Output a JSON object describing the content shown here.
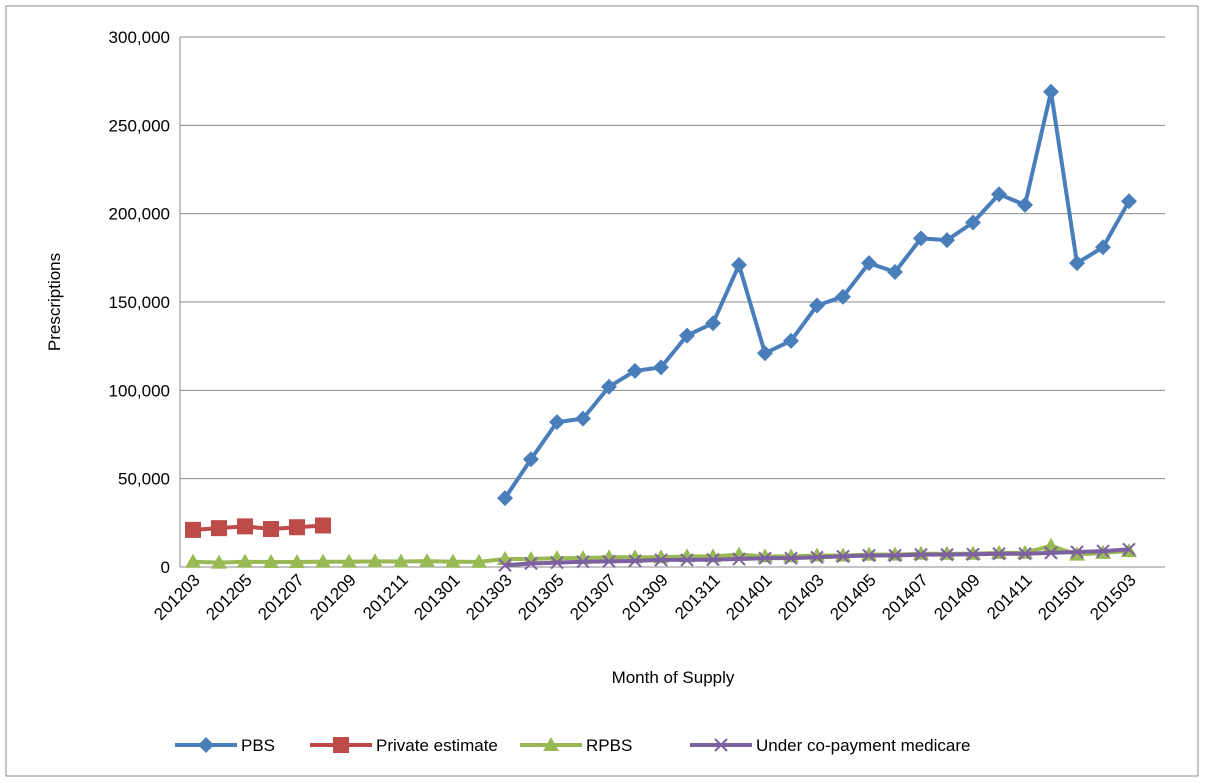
{
  "chart_data": {
    "type": "line",
    "y_label": "Prescriptions",
    "x_label": "Month of Supply",
    "categories": [
      "201203",
      null,
      "201205",
      null,
      "201207",
      null,
      "201209",
      null,
      "201211",
      null,
      "201301",
      null,
      "201303",
      null,
      "201305",
      null,
      "201307",
      null,
      "201309",
      null,
      "201311",
      null,
      "201401",
      null,
      "201403",
      null,
      "201405",
      null,
      "201407",
      null,
      "201409",
      null,
      "201411",
      null,
      "201501",
      null,
      "201503"
    ],
    "series": [
      {
        "name": "PBS",
        "color": "#4a7ebb",
        "marker": "diamond",
        "values": [
          null,
          null,
          null,
          null,
          null,
          null,
          null,
          null,
          null,
          null,
          null,
          null,
          39000,
          61000,
          82000,
          84000,
          102000,
          111000,
          113000,
          131000,
          138000,
          171000,
          121000,
          128000,
          148000,
          153000,
          172000,
          167000,
          186000,
          185000,
          195000,
          211000,
          205000,
          269000,
          172000,
          181000,
          207000
        ]
      },
      {
        "name": "Private estimate",
        "color": "#be4b48",
        "marker": "square",
        "values": [
          21000,
          22000,
          23000,
          21500,
          22500,
          23500,
          null,
          null,
          null,
          null,
          null,
          null,
          null,
          null,
          null,
          null,
          null,
          null,
          null,
          null,
          null,
          null,
          null,
          null,
          null,
          null,
          null,
          null,
          null,
          null,
          null,
          null,
          null,
          null,
          null,
          null,
          null
        ]
      },
      {
        "name": "RPBS",
        "color": "#98b954",
        "marker": "triangle",
        "values": [
          3000,
          2500,
          3000,
          2800,
          2800,
          3000,
          3000,
          3200,
          3100,
          3300,
          3000,
          2900,
          4500,
          4500,
          5000,
          5000,
          5500,
          5500,
          5500,
          6000,
          6000,
          7000,
          6000,
          6000,
          6500,
          6500,
          7000,
          7000,
          7500,
          7500,
          7500,
          8000,
          8000,
          12000,
          7000,
          8000,
          9000
        ]
      },
      {
        "name": "Under co-payment medicare",
        "color": "#7d60a0",
        "marker": "x",
        "values": [
          null,
          null,
          null,
          null,
          null,
          null,
          null,
          null,
          null,
          null,
          null,
          null,
          1000,
          2000,
          2500,
          3000,
          3200,
          3500,
          4000,
          4000,
          4200,
          4500,
          5000,
          5000,
          5500,
          6000,
          6500,
          6500,
          7000,
          7000,
          7200,
          7500,
          7500,
          8000,
          8500,
          9000,
          10000
        ]
      }
    ],
    "ylim": [
      0,
      300000
    ],
    "yticks": [
      0,
      {
        "value": 50000,
        "label": "50,000"
      },
      {
        "value": 100000,
        "label": "100,000"
      },
      {
        "value": 150000,
        "label": "150,000"
      },
      {
        "value": 200000,
        "label": "200,000"
      },
      {
        "value": 250000,
        "label": "250,000"
      },
      {
        "value": 300000,
        "label": "300,000"
      }
    ],
    "grid": true,
    "legend": "bottom"
  }
}
